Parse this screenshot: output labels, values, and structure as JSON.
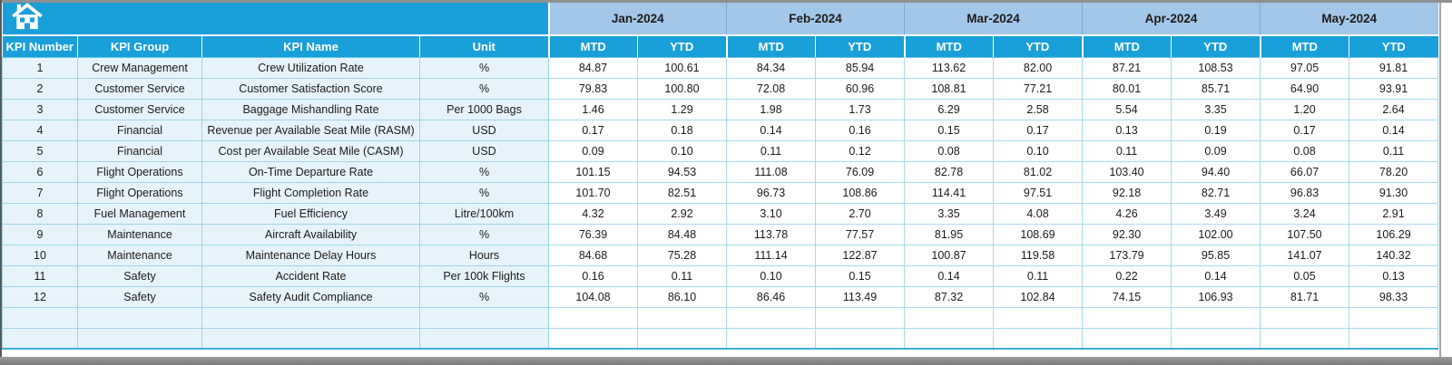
{
  "window": {
    "home_icon": "home-icon"
  },
  "colors": {
    "header_cyan": "#199fd9",
    "month_header_blue": "#a3c7e8",
    "row_tint_blue": "#e7f3fa",
    "grid_line": "#a8dcea",
    "group_line": "#3ab0de",
    "header_text": "#ffffff",
    "body_text": "#1b1b1b"
  },
  "table": {
    "months": [
      "Jan-2024",
      "Feb-2024",
      "Mar-2024",
      "Apr-2024",
      "May-2024"
    ],
    "period_headers": [
      "MTD",
      "YTD"
    ],
    "info_headers": [
      "KPI Number",
      "KPI Group",
      "KPI Name",
      "Unit"
    ],
    "rows": [
      {
        "number": "1",
        "group": "Crew Management",
        "name": "Crew Utilization Rate",
        "unit": "%",
        "values": [
          "84.87",
          "100.61",
          "84.34",
          "85.94",
          "113.62",
          "82.00",
          "87.21",
          "108.53",
          "97.05",
          "91.81"
        ]
      },
      {
        "number": "2",
        "group": "Customer Service",
        "name": "Customer Satisfaction Score",
        "unit": "%",
        "values": [
          "79.83",
          "100.80",
          "72.08",
          "60.96",
          "108.81",
          "77.21",
          "80.01",
          "85.71",
          "64.90",
          "93.91"
        ]
      },
      {
        "number": "3",
        "group": "Customer Service",
        "name": "Baggage Mishandling Rate",
        "unit": "Per 1000 Bags",
        "values": [
          "1.46",
          "1.29",
          "1.98",
          "1.73",
          "6.29",
          "2.58",
          "5.54",
          "3.35",
          "1.20",
          "2.64"
        ]
      },
      {
        "number": "4",
        "group": "Financial",
        "name": "Revenue per Available Seat Mile (RASM)",
        "unit": "USD",
        "values": [
          "0.17",
          "0.18",
          "0.14",
          "0.16",
          "0.15",
          "0.17",
          "0.13",
          "0.19",
          "0.17",
          "0.14"
        ]
      },
      {
        "number": "5",
        "group": "Financial",
        "name": "Cost per Available Seat Mile (CASM)",
        "unit": "USD",
        "values": [
          "0.09",
          "0.10",
          "0.11",
          "0.12",
          "0.08",
          "0.10",
          "0.11",
          "0.09",
          "0.08",
          "0.11"
        ]
      },
      {
        "number": "6",
        "group": "Flight Operations",
        "name": "On-Time Departure Rate",
        "unit": "%",
        "values": [
          "101.15",
          "94.53",
          "111.08",
          "76.09",
          "82.78",
          "81.02",
          "103.40",
          "94.40",
          "66.07",
          "78.20"
        ]
      },
      {
        "number": "7",
        "group": "Flight Operations",
        "name": "Flight Completion Rate",
        "unit": "%",
        "values": [
          "101.70",
          "82.51",
          "96.73",
          "108.86",
          "114.41",
          "97.51",
          "92.18",
          "82.71",
          "96.83",
          "91.30"
        ]
      },
      {
        "number": "8",
        "group": "Fuel Management",
        "name": "Fuel Efficiency",
        "unit": "Litre/100km",
        "values": [
          "4.32",
          "2.92",
          "3.10",
          "2.70",
          "3.35",
          "4.08",
          "4.26",
          "3.49",
          "3.24",
          "2.91"
        ]
      },
      {
        "number": "9",
        "group": "Maintenance",
        "name": "Aircraft Availability",
        "unit": "%",
        "values": [
          "76.39",
          "84.48",
          "113.78",
          "77.57",
          "81.95",
          "108.69",
          "92.30",
          "102.00",
          "107.50",
          "106.29"
        ]
      },
      {
        "number": "10",
        "group": "Maintenance",
        "name": "Maintenance Delay Hours",
        "unit": "Hours",
        "values": [
          "84.68",
          "75.28",
          "111.14",
          "122.87",
          "100.87",
          "119.58",
          "173.79",
          "95.85",
          "141.07",
          "140.32"
        ]
      },
      {
        "number": "11",
        "group": "Safety",
        "name": "Accident Rate",
        "unit": "Per 100k Flights",
        "values": [
          "0.16",
          "0.11",
          "0.10",
          "0.15",
          "0.14",
          "0.11",
          "0.22",
          "0.14",
          "0.05",
          "0.13"
        ]
      },
      {
        "number": "12",
        "group": "Safety",
        "name": "Safety Audit Compliance",
        "unit": "%",
        "values": [
          "104.08",
          "86.10",
          "86.46",
          "113.49",
          "87.32",
          "102.84",
          "74.15",
          "106.93",
          "81.71",
          "98.33"
        ]
      }
    ],
    "empty_row_count": 2
  }
}
